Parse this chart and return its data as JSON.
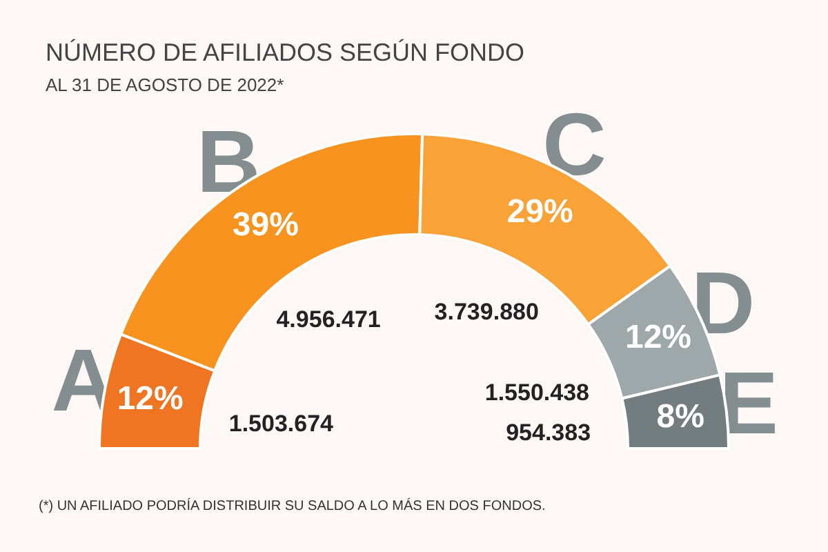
{
  "chart_data": {
    "type": "donut",
    "title": "NÚMERO DE AFILIADOS SEGÚN FONDO",
    "subtitle": "AL 31 DE AGOSTO DE 2022*",
    "categories": [
      "A",
      "B",
      "C",
      "D",
      "E"
    ],
    "values": [
      1503674,
      4956471,
      3739880,
      1550438,
      954383
    ],
    "value_labels": [
      "1.503.674",
      "4.956.471",
      "3.739.880",
      "1.550.438",
      "954.383"
    ],
    "colors": [
      "#f07522",
      "#f7931e",
      "#f8a238",
      "#9ea7aa",
      "#737d80"
    ],
    "annotations": [
      {
        "text": "12%",
        "x": "A"
      },
      {
        "text": "39%",
        "x": "B"
      },
      {
        "text": "29%",
        "x": "C"
      },
      {
        "text": "12%",
        "x": "D"
      },
      {
        "text": "8%",
        "x": "E"
      },
      "(*) UN AFILIADO PODRÍA DISTRIBUIR SU SALDO A LO MÁS EN DOS FONDOS."
    ],
    "legend": false
  }
}
